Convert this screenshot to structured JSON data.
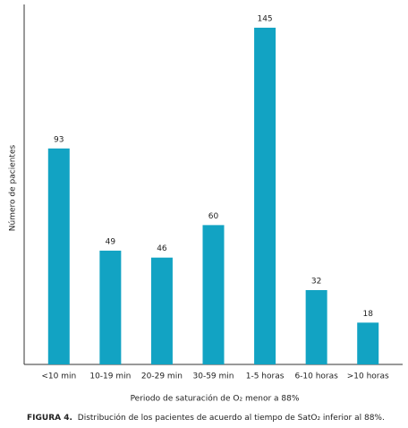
{
  "chart_data": {
    "type": "bar",
    "categories": [
      "<10 min",
      "10-19 min",
      "20-29 min",
      "30-59 min",
      "1-5 horas",
      "6-10 horas",
      ">10 horas"
    ],
    "values": [
      93,
      49,
      46,
      60,
      145,
      32,
      18
    ],
    "color": "#12a3c3",
    "ylim": [
      0,
      155
    ],
    "y_label": "Número de pacientes",
    "x_label": "Periodo de saturación de O₂ menor a 88%",
    "caption_label": "FIGURA 4.",
    "caption": "Distribución de los pacientes de acuerdo al tiempo de SatO₂ inferior al 88%."
  }
}
